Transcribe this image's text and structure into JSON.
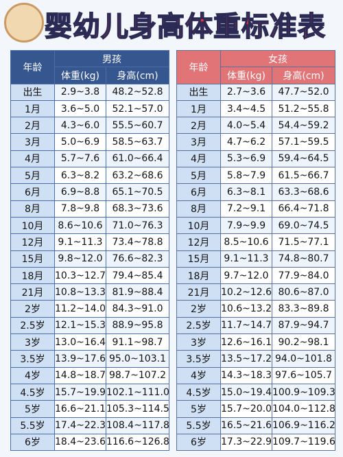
{
  "title": "婴幼儿身高体重标准表",
  "tables": [
    {
      "group": "男孩",
      "headers": {
        "age": "年龄",
        "weight": "体重(kg)",
        "height": "身高(cm)"
      },
      "rows": [
        [
          "出生",
          "2.9~3.8",
          "48.2~52.8"
        ],
        [
          "1月",
          "3.6~5.0",
          "52.1~57.0"
        ],
        [
          "2月",
          "4.3~6.0",
          "55.5~60.7"
        ],
        [
          "3月",
          "5.0~6.9",
          "58.5~63.7"
        ],
        [
          "4月",
          "5.7~7.6",
          "61.0~66.4"
        ],
        [
          "5月",
          "6.3~8.2",
          "63.2~68.6"
        ],
        [
          "6月",
          "6.9~8.8",
          "65.1~70.5"
        ],
        [
          "8月",
          "7.8~9.8",
          "68.3~73.6"
        ],
        [
          "10月",
          "8.6~10.6",
          "71.0~76.3"
        ],
        [
          "12月",
          "9.1~11.3",
          "73.4~78.8"
        ],
        [
          "15月",
          "9.8~12.0",
          "76.6~82.3"
        ],
        [
          "18月",
          "10.3~12.7",
          "79.4~85.4"
        ],
        [
          "21月",
          "10.8~13.3",
          "81.9~88.4"
        ],
        [
          "2岁",
          "11.2~14.0",
          "84.3~91.0"
        ],
        [
          "2.5岁",
          "12.1~15.3",
          "88.9~95.8"
        ],
        [
          "3岁",
          "13.0~16.4",
          "91.1~98.7"
        ],
        [
          "3.5岁",
          "13.9~17.6",
          "95.0~103.1"
        ],
        [
          "4岁",
          "14.8~18.7",
          "98.7~107.2"
        ],
        [
          "4.5岁",
          "15.7~19.9",
          "102.1~111.0"
        ],
        [
          "5岁",
          "16.6~21.1",
          "105.3~114.5"
        ],
        [
          "5.5岁",
          "17.4~22.3",
          "108.4~117.8"
        ],
        [
          "6岁",
          "18.4~23.6",
          "116.6~126.8"
        ]
      ]
    },
    {
      "group": "女孩",
      "headers": {
        "age": "年龄",
        "weight": "体重(kg)",
        "height": "身高(cm)"
      },
      "rows": [
        [
          "出生",
          "2.7~3.6",
          "47.7~52.0"
        ],
        [
          "1月",
          "3.4~4.5",
          "51.2~55.8"
        ],
        [
          "2月",
          "4.0~5.4",
          "54.4~59.2"
        ],
        [
          "3月",
          "4.7~6.2",
          "57.1~59.5"
        ],
        [
          "4月",
          "5.3~6.9",
          "59.4~64.5"
        ],
        [
          "5月",
          "5.8~7.9",
          "61.5~66.7"
        ],
        [
          "6月",
          "6.3~8.1",
          "63.3~68.6"
        ],
        [
          "8月",
          "7.2~9.1",
          "66.4~71.8"
        ],
        [
          "10月",
          "7.9~9.9",
          "69.0~74.5"
        ],
        [
          "12月",
          "8.5~10.6",
          "71.5~77.1"
        ],
        [
          "15月",
          "9.1~11.3",
          "74.8~80.7"
        ],
        [
          "18月",
          "9.7~12.0",
          "77.9~84.0"
        ],
        [
          "21月",
          "10.2~12.6",
          "80.6~87.0"
        ],
        [
          "2岁",
          "10.6~13.2",
          "83.3~89.8"
        ],
        [
          "2.5岁",
          "11.7~14.7",
          "87.9~94.7"
        ],
        [
          "3岁",
          "12.6~16.1",
          "90.2~98.1"
        ],
        [
          "3.5岁",
          "13.5~17.2",
          "94.0~101.8"
        ],
        [
          "4岁",
          "14.3~18.3",
          "97.6~105.7"
        ],
        [
          "4.5岁",
          "15.0~19.4",
          "100.9~109.3"
        ],
        [
          "5岁",
          "15.7~20.0",
          "104.0~112.8"
        ],
        [
          "5.5岁",
          "16.5~21.6",
          "106.9~116.2"
        ],
        [
          "6岁",
          "17.3~22.9",
          "109.7~119.6"
        ]
      ]
    }
  ]
}
